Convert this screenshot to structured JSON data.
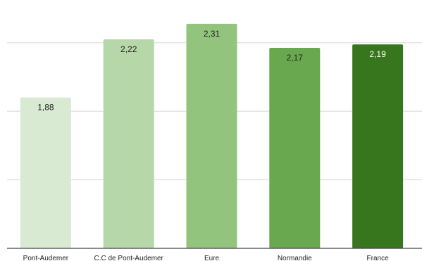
{
  "chart_data": {
    "type": "bar",
    "categories": [
      "Pont-Audemer",
      "C.C de Pont-Audemer",
      "Eure",
      "Normandie",
      "France"
    ],
    "values": [
      1.88,
      2.22,
      2.31,
      2.17,
      2.19
    ],
    "value_labels": [
      "1,88",
      "2,22",
      "2,31",
      "2,17",
      "2,19"
    ],
    "colors": [
      "#d9ead3",
      "#b6d7a8",
      "#93c47d",
      "#6aa84f",
      "#38761d"
    ],
    "title": "",
    "xlabel": "",
    "ylabel": "",
    "ylim": [
      1.0,
      2.4
    ],
    "yticks": [
      1.0,
      1.2,
      1.4,
      1.6,
      1.8,
      2.0,
      2.2,
      2.4
    ],
    "grid": true,
    "legend": "none"
  }
}
